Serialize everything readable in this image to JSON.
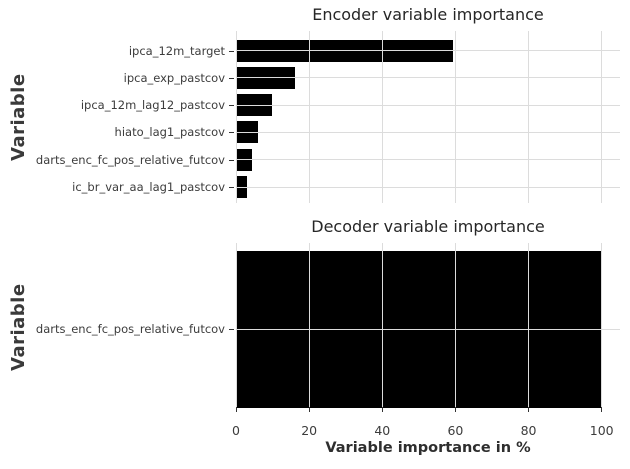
{
  "figure": {
    "background": "#ffffff",
    "bar_color": "#000000",
    "grid_color": "#dcdcdc",
    "title_color": "#262626",
    "tick_label_color": "#3c3c3c",
    "axis_label_color": "#3a3a3a"
  },
  "chart_data": [
    {
      "type": "bar",
      "orientation": "horizontal",
      "title": "Encoder variable importance",
      "ylabel": "Variable",
      "xlabel": "",
      "categories": [
        "ipca_12m_target",
        "ipca_exp_pastcov",
        "ipca_12m_lag12_pastcov",
        "hiato_lag1_pastcov",
        "darts_enc_fc_pos_relative_futcov",
        "ic_br_var_aa_lag1_pastcov"
      ],
      "values": [
        59.2,
        16.2,
        9.9,
        6.0,
        4.4,
        2.9
      ],
      "xlim": [
        0,
        105
      ],
      "xticks": [
        0,
        20,
        40,
        60,
        80,
        100
      ],
      "xtick_labels_visible": false,
      "grid": "both",
      "legend": "none"
    },
    {
      "type": "bar",
      "orientation": "horizontal",
      "title": "Decoder variable importance",
      "ylabel": "Variable",
      "xlabel": "Variable importance in %",
      "categories": [
        "darts_enc_fc_pos_relative_futcov"
      ],
      "values": [
        100
      ],
      "xlim": [
        0,
        105
      ],
      "xticks": [
        0,
        20,
        40,
        60,
        80,
        100
      ],
      "xtick_labels_visible": true,
      "grid": "both",
      "legend": "none"
    }
  ]
}
